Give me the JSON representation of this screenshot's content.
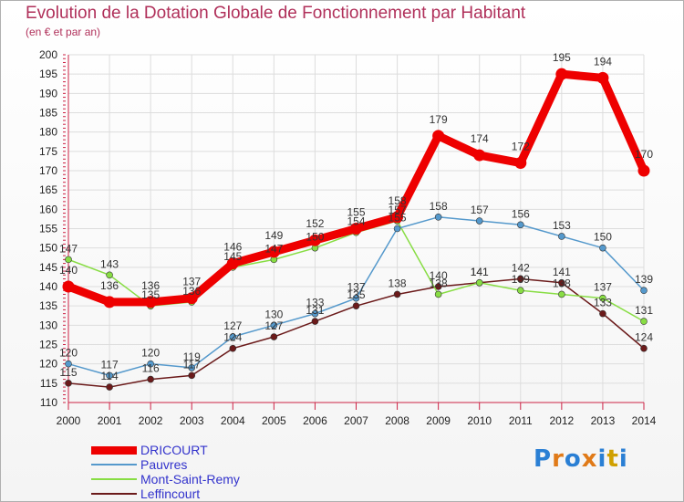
{
  "title": "Evolution de la Dotation Globale de Fonctionnement par Habitant",
  "subtitle": "(en € et par an)",
  "logo": "Proxiti",
  "chart_data": {
    "type": "line",
    "title": "Evolution de la Dotation Globale de Fonctionnement par Habitant",
    "subtitle": "(en € et par an)",
    "xlabel": "",
    "ylabel": "",
    "x": [
      "2000",
      "2001",
      "2002",
      "2003",
      "2004",
      "2005",
      "2006",
      "2007",
      "2008",
      "2009",
      "2010",
      "2011",
      "2012",
      "2013",
      "2014"
    ],
    "ylim": [
      110,
      200
    ],
    "yticks": [
      110,
      115,
      120,
      125,
      130,
      135,
      140,
      145,
      150,
      155,
      160,
      165,
      170,
      175,
      180,
      185,
      190,
      195,
      200
    ],
    "grid": true,
    "legend_position": "bottom-left",
    "series": [
      {
        "name": "Leffincourt",
        "color": "#6b1a1a",
        "width": 1.5,
        "radius": 3.5,
        "values": [
          115,
          114,
          116,
          117,
          124,
          127,
          131,
          135,
          138,
          140,
          141,
          142,
          141,
          133,
          124
        ]
      },
      {
        "name": "Mont-Saint-Remy",
        "color": "#88dd44",
        "width": 1.5,
        "radius": 3.5,
        "values": [
          147,
          143,
          135,
          136,
          145,
          147,
          150,
          154,
          157,
          138,
          141,
          139,
          138,
          137,
          131
        ]
      },
      {
        "name": "Pauvres",
        "color": "#5599cc",
        "width": 1.5,
        "radius": 3.5,
        "values": [
          120,
          117,
          120,
          119,
          127,
          130,
          133,
          137,
          155,
          158,
          157,
          156,
          153,
          150,
          139
        ]
      },
      {
        "name": "DRICOURT",
        "color": "#ee0000",
        "width": 9,
        "radius": 6.5,
        "values": [
          140,
          136,
          136,
          137,
          146,
          149,
          152,
          155,
          158,
          179,
          174,
          172,
          195,
          194,
          170
        ]
      }
    ],
    "legend": [
      "DRICOURT",
      "Pauvres",
      "Mont-Saint-Remy",
      "Leffincourt"
    ]
  }
}
